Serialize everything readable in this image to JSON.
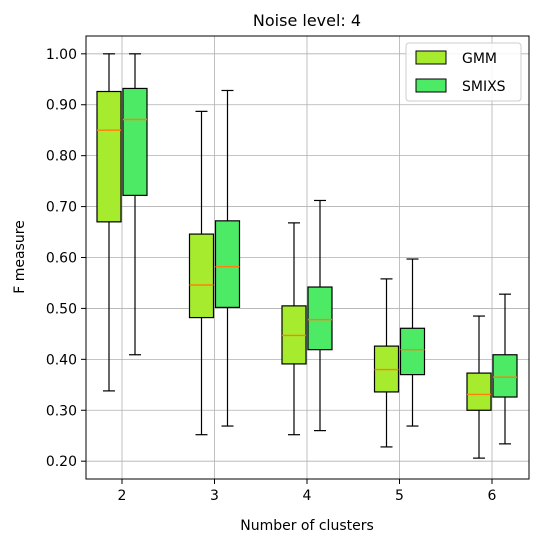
{
  "chart_data": {
    "type": "box",
    "title": "Noise level: 4",
    "xlabel": "Number of clusters",
    "ylabel": "F measure",
    "categories": [
      "2",
      "3",
      "4",
      "5",
      "6"
    ],
    "ylim": [
      0.165,
      1.035
    ],
    "yticks": [
      0.2,
      0.3,
      0.4,
      0.5,
      0.6,
      0.7,
      0.8,
      0.9,
      1.0
    ],
    "ytick_labels": [
      "0.20",
      "0.30",
      "0.40",
      "0.50",
      "0.60",
      "0.70",
      "0.80",
      "0.90",
      "1.00"
    ],
    "grid": true,
    "legend_position": "top-right",
    "median_color": "#ff7f0e",
    "series": [
      {
        "name": "GMM",
        "color": "#a6eb2e",
        "boxes": [
          {
            "whislo": 0.338,
            "q1": 0.67,
            "med": 0.85,
            "q3": 0.926,
            "whishi": 1.0
          },
          {
            "whislo": 0.252,
            "q1": 0.482,
            "med": 0.546,
            "q3": 0.646,
            "whishi": 0.887
          },
          {
            "whislo": 0.252,
            "q1": 0.391,
            "med": 0.447,
            "q3": 0.505,
            "whishi": 0.668
          },
          {
            "whislo": 0.228,
            "q1": 0.336,
            "med": 0.38,
            "q3": 0.426,
            "whishi": 0.558
          },
          {
            "whislo": 0.206,
            "q1": 0.3,
            "med": 0.331,
            "q3": 0.373,
            "whishi": 0.485
          }
        ]
      },
      {
        "name": "SMIXS",
        "color": "#4deb65",
        "boxes": [
          {
            "whislo": 0.409,
            "q1": 0.722,
            "med": 0.871,
            "q3": 0.932,
            "whishi": 1.0
          },
          {
            "whislo": 0.269,
            "q1": 0.502,
            "med": 0.582,
            "q3": 0.672,
            "whishi": 0.928
          },
          {
            "whislo": 0.26,
            "q1": 0.419,
            "med": 0.478,
            "q3": 0.542,
            "whishi": 0.712
          },
          {
            "whislo": 0.269,
            "q1": 0.37,
            "med": 0.419,
            "q3": 0.461,
            "whishi": 0.597
          },
          {
            "whislo": 0.234,
            "q1": 0.326,
            "med": 0.365,
            "q3": 0.409,
            "whishi": 0.528
          }
        ]
      }
    ]
  }
}
